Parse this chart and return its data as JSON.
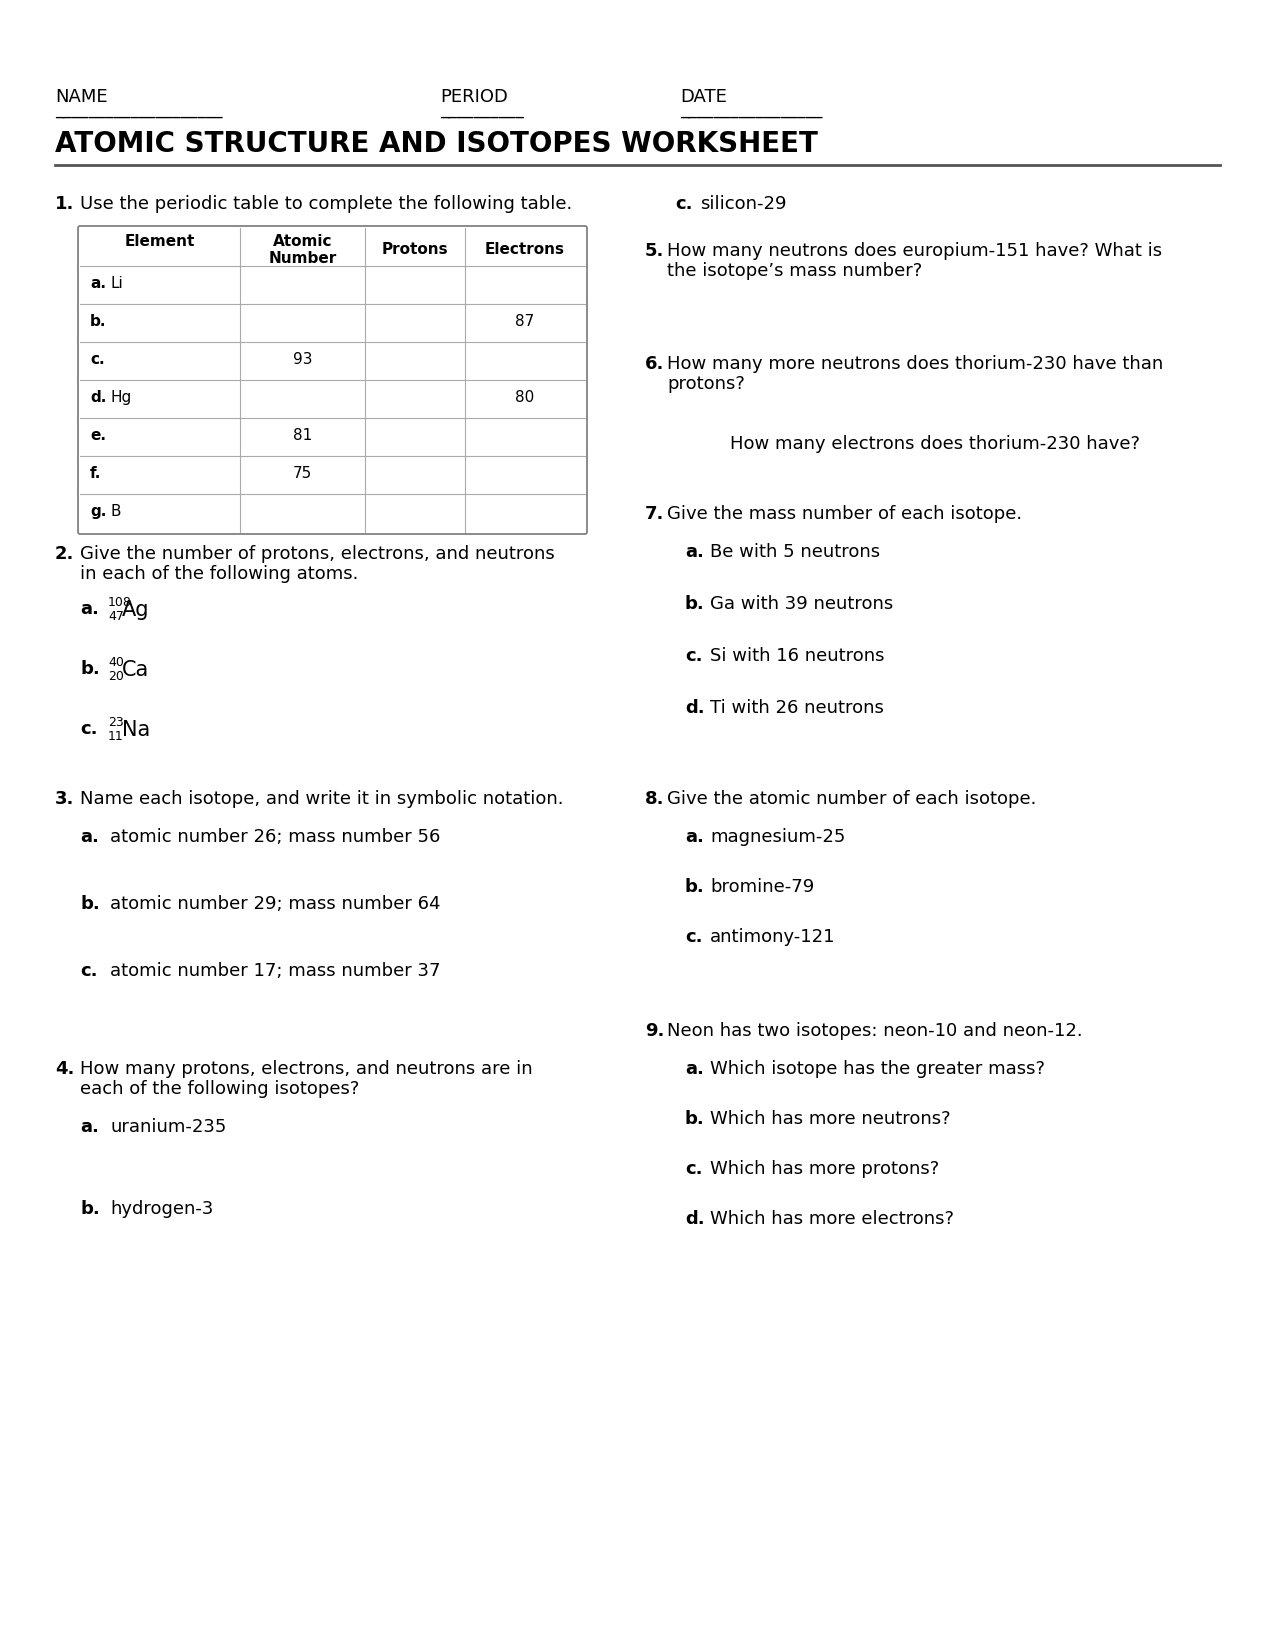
{
  "bg_color": "#ffffff",
  "title": "ATOMIC STRUCTURE AND ISOTOPES WORKSHEET",
  "table_rows": [
    [
      "a.",
      "Li",
      "",
      "",
      ""
    ],
    [
      "b.",
      "",
      "",
      "",
      "87"
    ],
    [
      "c.",
      "",
      "93",
      "",
      ""
    ],
    [
      "d.",
      "Hg",
      "",
      "",
      "80"
    ],
    [
      "e.",
      "",
      "81",
      "",
      ""
    ],
    [
      "f.",
      "",
      "75",
      "",
      ""
    ],
    [
      "g.",
      "B",
      "",
      "",
      ""
    ]
  ]
}
